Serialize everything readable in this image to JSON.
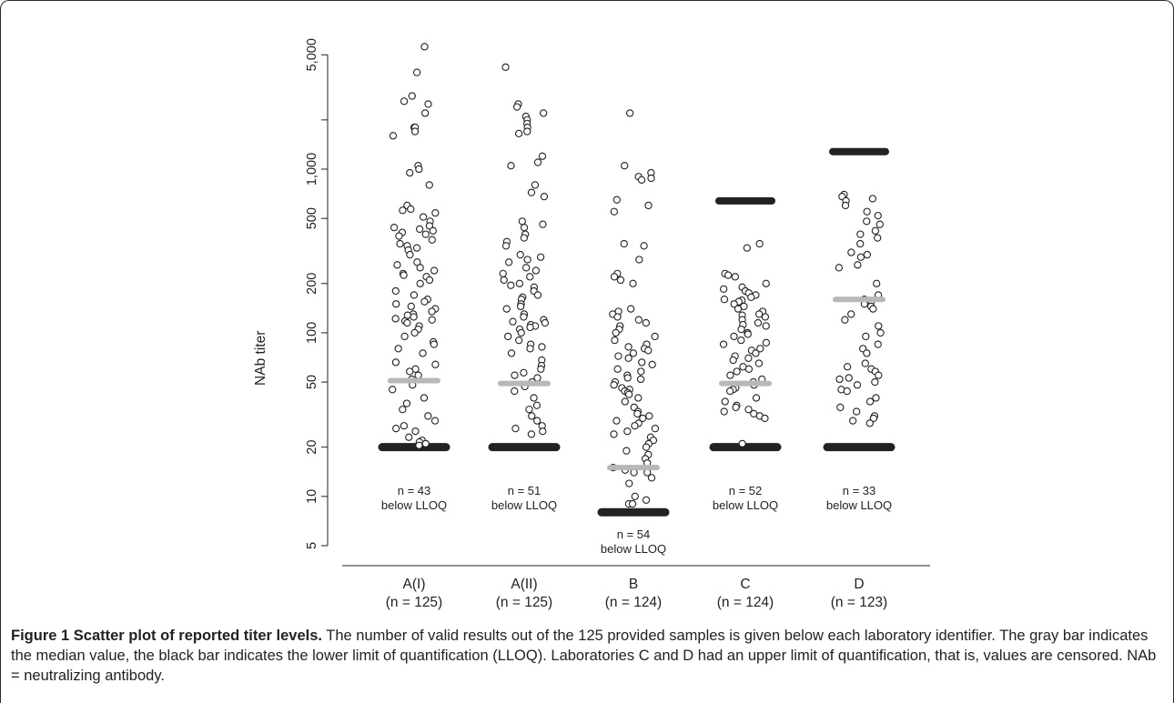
{
  "chart_data": {
    "type": "scatter",
    "ylabel": "NAb titer",
    "yscale": "log",
    "ylim": [
      5,
      6000
    ],
    "yticks": [
      5,
      10,
      20,
      50,
      100,
      200,
      500,
      1000,
      2000,
      5000
    ],
    "ytick_labels": [
      "5",
      "10",
      "20",
      "50",
      "100",
      "200",
      "500",
      "1,000",
      "",
      "5,000"
    ],
    "groups": [
      {
        "label": "A(I)",
        "n_label": "(n = 125)",
        "median": 51,
        "lloq": 20,
        "below_lloq_label": [
          "n = 43",
          "below LLOQ"
        ],
        "values": [
          5600,
          3900,
          2800,
          2600,
          2500,
          2200,
          1800,
          1800,
          1700,
          1600,
          1050,
          1000,
          950,
          800,
          600,
          570,
          560,
          540,
          510,
          480,
          450,
          440,
          430,
          420,
          410,
          400,
          390,
          370,
          350,
          340,
          330,
          320,
          300,
          270,
          260,
          250,
          240,
          230,
          225,
          220,
          210,
          200,
          180,
          170,
          160,
          155,
          150,
          145,
          140,
          135,
          130,
          128,
          125,
          122,
          120,
          118,
          115,
          110,
          105,
          100,
          95,
          88,
          85,
          80,
          75,
          66,
          64,
          60,
          58,
          55,
          52,
          48,
          45,
          40,
          37,
          34,
          31,
          29,
          27,
          26,
          25,
          23,
          22,
          21,
          21.5,
          20.5
        ]
      },
      {
        "label": "A(II)",
        "n_label": "(n = 125)",
        "median": 49,
        "lloq": 20,
        "below_lloq_label": [
          "n = 51",
          "below LLOQ"
        ],
        "values": [
          4200,
          2500,
          2400,
          2200,
          2100,
          2000,
          1900,
          1800,
          1700,
          1650,
          1200,
          1100,
          1050,
          800,
          720,
          680,
          480,
          460,
          440,
          400,
          380,
          360,
          340,
          300,
          290,
          280,
          270,
          250,
          240,
          230,
          220,
          210,
          200,
          195,
          190,
          180,
          170,
          165,
          160,
          150,
          145,
          140,
          130,
          125,
          120,
          117,
          115,
          112,
          110,
          108,
          105,
          100,
          95,
          90,
          85,
          82,
          80,
          75,
          68,
          63,
          60,
          57,
          55,
          53,
          50,
          47,
          44,
          40,
          36,
          34,
          31,
          29,
          27,
          26,
          25,
          24
        ]
      },
      {
        "label": "B",
        "n_label": "(n = 124)",
        "median": 15,
        "lloq": 8,
        "below_lloq_label": [
          "n = 54",
          "below LLOQ"
        ],
        "values": [
          2200,
          1050,
          950,
          900,
          880,
          860,
          650,
          600,
          550,
          350,
          340,
          280,
          230,
          220,
          210,
          200,
          140,
          135,
          130,
          125,
          120,
          115,
          110,
          105,
          100,
          95,
          90,
          85,
          82,
          80,
          78,
          75,
          72,
          70,
          66,
          64,
          60,
          58,
          55,
          53,
          52,
          50,
          48,
          46,
          45,
          44,
          43,
          42,
          40,
          38,
          35,
          33,
          32,
          31,
          30,
          29,
          28,
          27,
          26,
          25,
          24,
          23,
          22,
          21,
          20,
          19,
          18,
          17,
          16,
          15,
          14.5,
          14,
          14,
          13,
          12,
          10,
          9.5,
          9,
          9
        ]
      },
      {
        "label": "C",
        "n_label": "(n = 124)",
        "median": 49,
        "lloq": 20,
        "uloq": 640,
        "below_lloq_label": [
          "n = 52",
          "below LLOQ"
        ],
        "values": [
          350,
          330,
          230,
          225,
          220,
          200,
          190,
          185,
          180,
          175,
          170,
          165,
          160,
          158,
          155,
          150,
          145,
          140,
          135,
          130,
          128,
          125,
          120,
          115,
          112,
          110,
          105,
          100,
          98,
          95,
          90,
          87,
          85,
          80,
          78,
          75,
          72,
          70,
          68,
          65,
          62,
          60,
          58,
          55,
          52,
          50,
          48,
          46,
          45,
          44,
          40,
          38,
          36,
          35,
          34,
          33,
          32,
          31,
          30,
          21
        ]
      },
      {
        "label": "D",
        "n_label": "(n = 123)",
        "median": 160,
        "lloq": 20,
        "uloq": 1280,
        "below_lloq_label": [
          "n = 33",
          "below LLOQ"
        ],
        "values": [
          700,
          680,
          660,
          640,
          600,
          550,
          520,
          480,
          460,
          420,
          400,
          380,
          350,
          310,
          300,
          290,
          260,
          250,
          200,
          170,
          160,
          155,
          150,
          145,
          140,
          130,
          120,
          110,
          100,
          95,
          85,
          80,
          75,
          65,
          62,
          60,
          58,
          55,
          53,
          52,
          50,
          48,
          45,
          44,
          40,
          38,
          35,
          33,
          31,
          30,
          29,
          28
        ]
      }
    ]
  },
  "colors": {
    "median": "#b8b8b8",
    "lloq": "#222222",
    "point_stroke": "#222222",
    "axis": "#222222"
  },
  "caption": {
    "bold": "Figure 1 Scatter plot of reported titer levels.",
    "text": " The number of valid results out of the 125 provided samples is given below each laboratory identifier. The gray bar indicates the median value, the black bar indicates the lower limit of quantification (LLOQ). Laboratories C and D had an upper limit of quantification, that is, values are censored. NAb = neutralizing antibody."
  }
}
